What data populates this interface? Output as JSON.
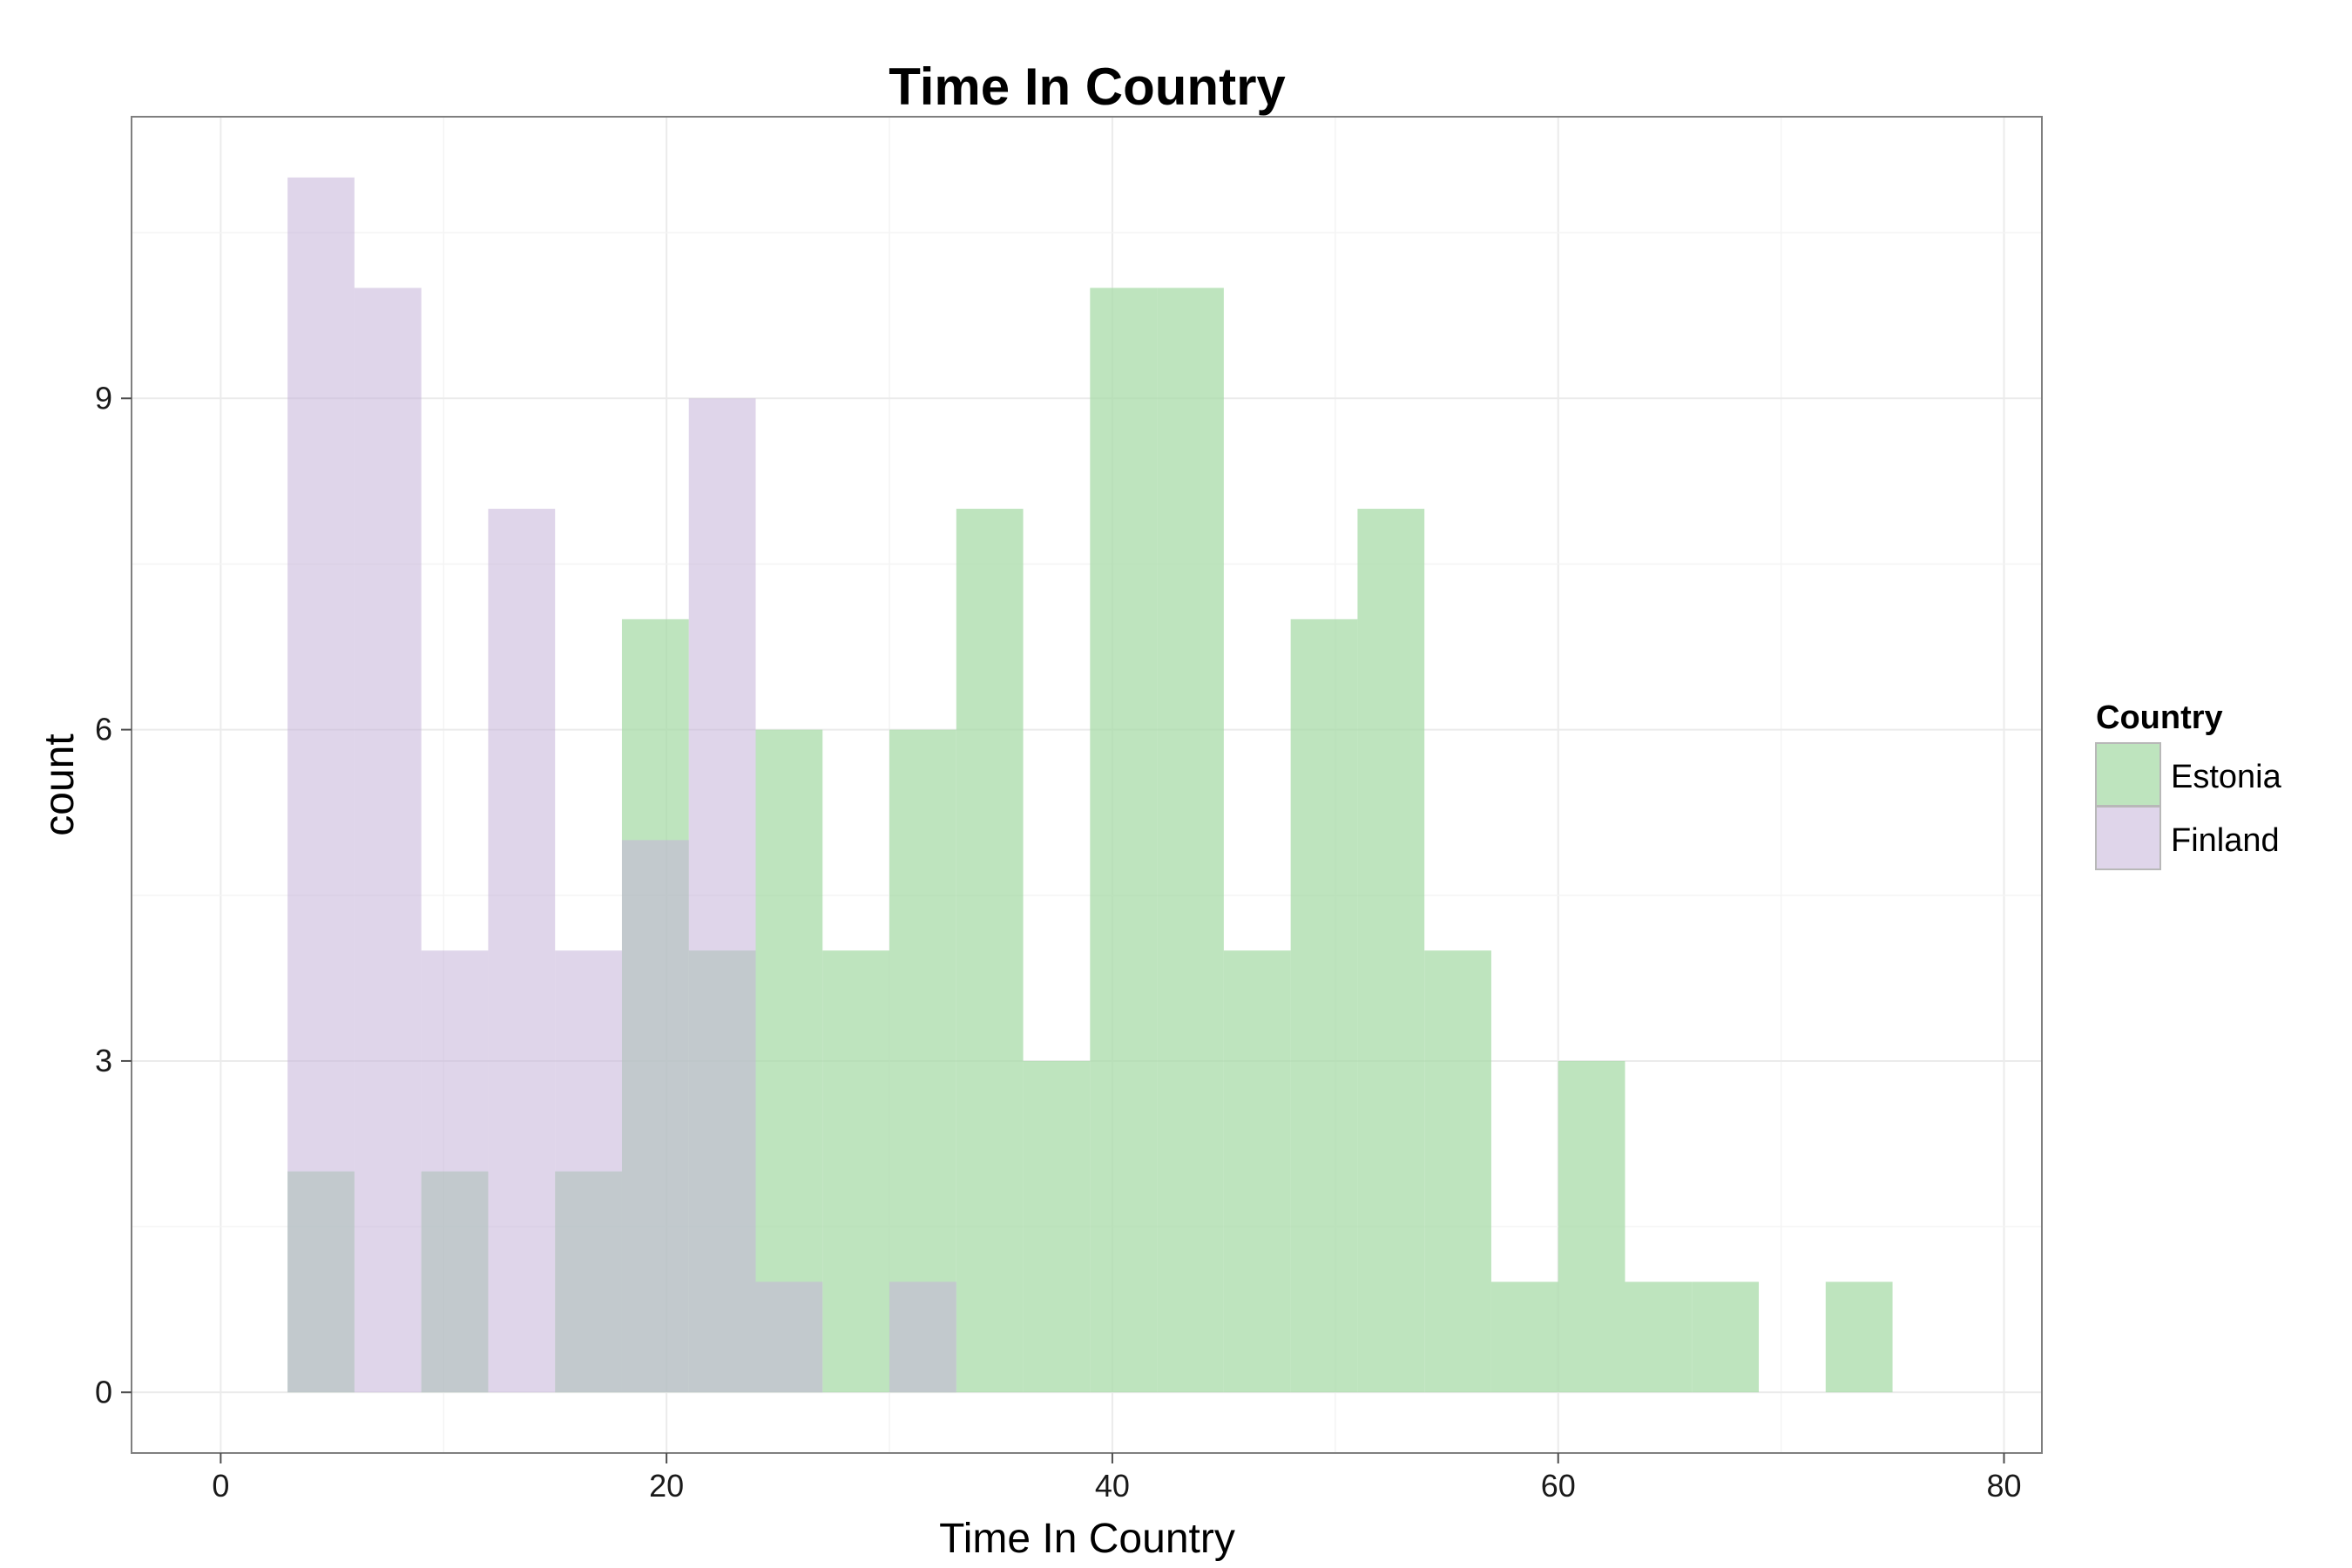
{
  "chart_data": {
    "type": "histogram",
    "title": "Time In Country",
    "xlabel": "Time In Country",
    "ylabel": "count",
    "xlim": [
      -4,
      81.7
    ],
    "ylim": [
      -0.55,
      11.55
    ],
    "x_ticks": [
      0,
      20,
      40,
      60,
      80
    ],
    "y_ticks": [
      0,
      3,
      6,
      9
    ],
    "x_tick_labels": [
      "0",
      "20",
      "40",
      "60",
      "80"
    ],
    "y_tick_labels": [
      "0",
      "3",
      "6",
      "9"
    ],
    "bin_width": 3,
    "grid": true,
    "legend": {
      "title": "Country",
      "position": "right",
      "entries": [
        "Estonia",
        "Finland"
      ]
    },
    "series": [
      {
        "name": "Estonia",
        "color": "#a8dba8",
        "bins": [
          {
            "x0": 3,
            "x1": 6,
            "count": 2
          },
          {
            "x0": 9,
            "x1": 12,
            "count": 2
          },
          {
            "x0": 15,
            "x1": 18,
            "count": 2
          },
          {
            "x0": 18,
            "x1": 21,
            "count": 7
          },
          {
            "x0": 21,
            "x1": 24,
            "count": 4
          },
          {
            "x0": 24,
            "x1": 27,
            "count": 6
          },
          {
            "x0": 27,
            "x1": 30,
            "count": 4
          },
          {
            "x0": 30,
            "x1": 33,
            "count": 6
          },
          {
            "x0": 33,
            "x1": 36,
            "count": 8
          },
          {
            "x0": 36,
            "x1": 39,
            "count": 3
          },
          {
            "x0": 39,
            "x1": 42,
            "count": 10
          },
          {
            "x0": 42,
            "x1": 45,
            "count": 10
          },
          {
            "x0": 45,
            "x1": 48,
            "count": 4
          },
          {
            "x0": 48,
            "x1": 51,
            "count": 7
          },
          {
            "x0": 51,
            "x1": 54,
            "count": 8
          },
          {
            "x0": 54,
            "x1": 57,
            "count": 4
          },
          {
            "x0": 57,
            "x1": 60,
            "count": 1
          },
          {
            "x0": 60,
            "x1": 63,
            "count": 3
          },
          {
            "x0": 63,
            "x1": 66,
            "count": 1
          },
          {
            "x0": 66,
            "x1": 69,
            "count": 1
          },
          {
            "x0": 72,
            "x1": 75,
            "count": 1
          }
        ]
      },
      {
        "name": "Finland",
        "color": "#d9cfe6",
        "bins": [
          {
            "x0": 3,
            "x1": 6,
            "count": 11
          },
          {
            "x0": 6,
            "x1": 9,
            "count": 10
          },
          {
            "x0": 9,
            "x1": 12,
            "count": 4
          },
          {
            "x0": 12,
            "x1": 15,
            "count": 8
          },
          {
            "x0": 15,
            "x1": 18,
            "count": 4
          },
          {
            "x0": 18,
            "x1": 21,
            "count": 5
          },
          {
            "x0": 21,
            "x1": 24,
            "count": 9
          },
          {
            "x0": 24,
            "x1": 27,
            "count": 1
          },
          {
            "x0": 30,
            "x1": 33,
            "count": 1
          }
        ]
      }
    ]
  }
}
